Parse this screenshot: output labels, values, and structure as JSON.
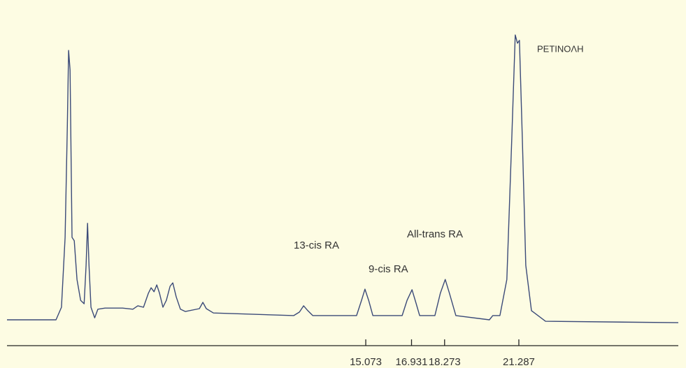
{
  "chart_data": {
    "type": "line",
    "color": "#3b4a78",
    "xlim": [
      0.51,
      27.76
    ],
    "ylim": [
      0,
      100
    ],
    "xticks": [
      15.073,
      16.931,
      18.273,
      21.287
    ],
    "annotations": [
      "13-cis RA",
      "9-cis RA",
      "All-trans RA",
      "PETINOΛH"
    ],
    "x": [
      0.51,
      2.5,
      2.72,
      2.87,
      2.96,
      3.01,
      3.07,
      3.15,
      3.24,
      3.35,
      3.5,
      3.64,
      3.72,
      3.78,
      3.84,
      3.92,
      4.07,
      4.2,
      4.49,
      5.2,
      5.62,
      5.82,
      6.05,
      6.25,
      6.36,
      6.48,
      6.59,
      6.7,
      6.84,
      6.98,
      7.13,
      7.24,
      7.38,
      7.55,
      7.75,
      8.32,
      8.46,
      8.6,
      8.89,
      12.15,
      12.38,
      12.55,
      12.72,
      12.92,
      14.7,
      14.9,
      15.04,
      15.19,
      15.36,
      16.55,
      16.75,
      16.95,
      17.12,
      17.26,
      17.88,
      18.1,
      18.3,
      18.47,
      18.73,
      20.09,
      20.23,
      20.52,
      20.8,
      21.0,
      21.14,
      21.23,
      21.31,
      21.43,
      21.57,
      21.8,
      22.37,
      27.76
    ],
    "values": [
      0,
      0,
      4.4,
      28.8,
      67.8,
      94.1,
      87.3,
      28.8,
      27.6,
      14.1,
      6.8,
      5.6,
      19.0,
      33.7,
      19.0,
      4.4,
      0.7,
      3.7,
      4.1,
      4.1,
      3.7,
      4.9,
      4.4,
      9.3,
      11.2,
      9.8,
      12.2,
      9.3,
      4.4,
      6.8,
      11.7,
      12.9,
      8.0,
      3.7,
      2.9,
      3.9,
      6.1,
      3.9,
      2.4,
      1.5,
      2.7,
      4.9,
      3.2,
      1.5,
      1.5,
      6.8,
      10.7,
      6.8,
      1.5,
      1.5,
      6.8,
      10.5,
      5.6,
      1.5,
      1.5,
      9.3,
      14.1,
      9.3,
      1.5,
      0,
      1.5,
      1.5,
      14.1,
      62.9,
      99.5,
      96.6,
      97.6,
      62.9,
      19.0,
      3.2,
      -0.5,
      -1
    ]
  }
}
